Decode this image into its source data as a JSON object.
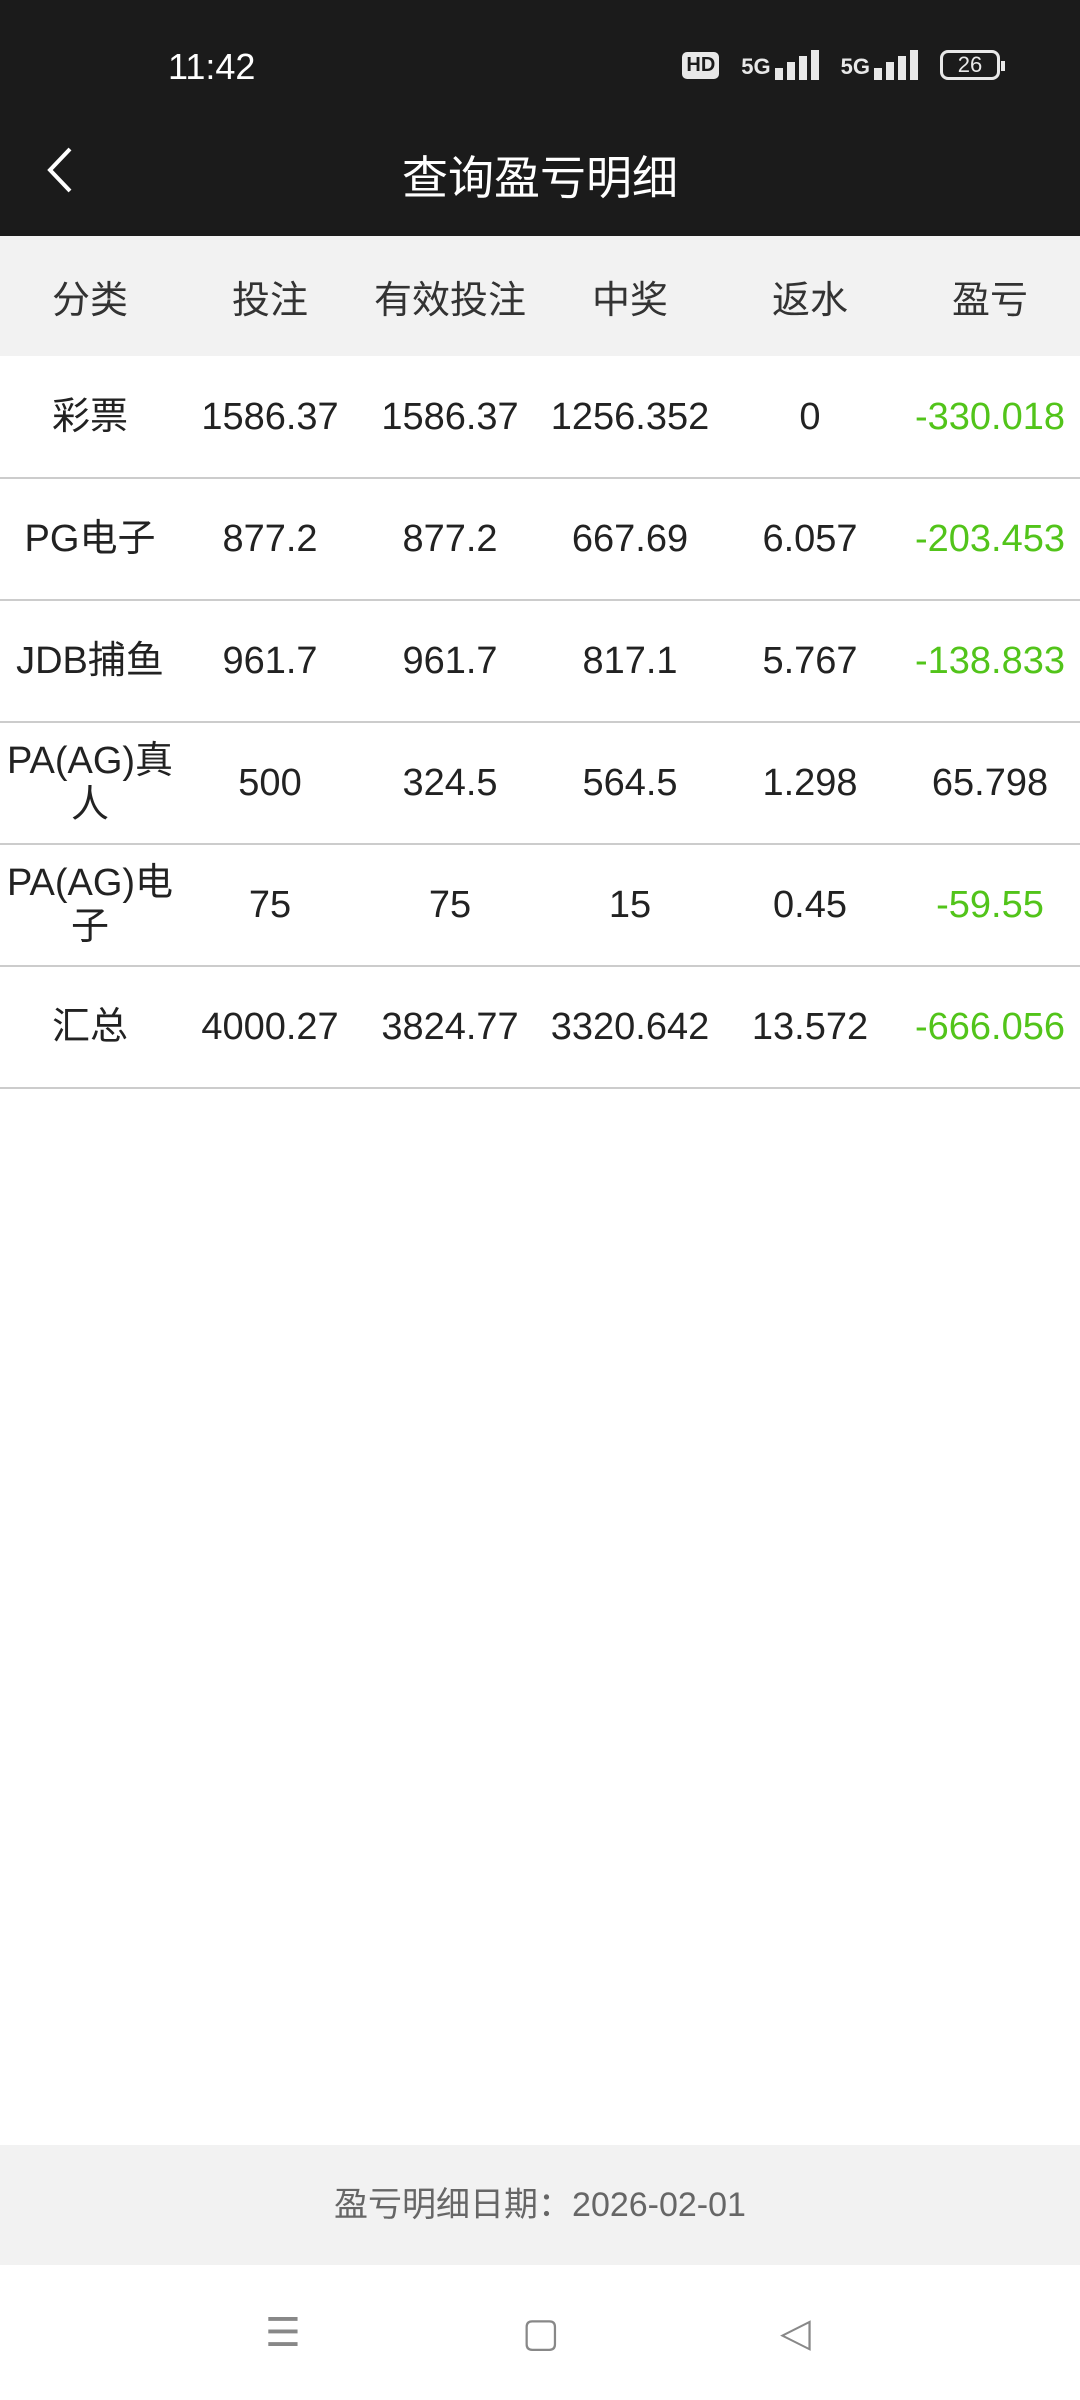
{
  "status_bar": {
    "time": "11:42",
    "hd": "HD",
    "net1": "5G",
    "net2": "5G",
    "battery": "26"
  },
  "header": {
    "title": "查询盈亏明细",
    "back_icon": "chevron-left-icon"
  },
  "table": {
    "columns": [
      "分类",
      "投注",
      "有效投注",
      "中奖",
      "返水",
      "盈亏"
    ],
    "rows": [
      [
        "彩票",
        "1586.37",
        "1586.37",
        "1256.352",
        "0",
        "-330.018"
      ],
      [
        "PG电子",
        "877.2",
        "877.2",
        "667.69",
        "6.057",
        "-203.453"
      ],
      [
        "JDB捕鱼",
        "961.7",
        "961.7",
        "817.1",
        "5.767",
        "-138.833"
      ],
      [
        "PA(AG)真人",
        "500",
        "324.5",
        "564.5",
        "1.298",
        "65.798"
      ],
      [
        "PA(AG)电子",
        "75",
        "75",
        "15",
        "0.45",
        "-59.55"
      ],
      [
        "汇总",
        "4000.27",
        "3824.77",
        "3320.642",
        "13.572",
        "-666.056"
      ]
    ]
  },
  "footer": {
    "date_text": "盈亏明细日期：2026-02-01"
  },
  "colors": {
    "negative": "#52c41a",
    "header_bg": "#1b1b1b"
  }
}
